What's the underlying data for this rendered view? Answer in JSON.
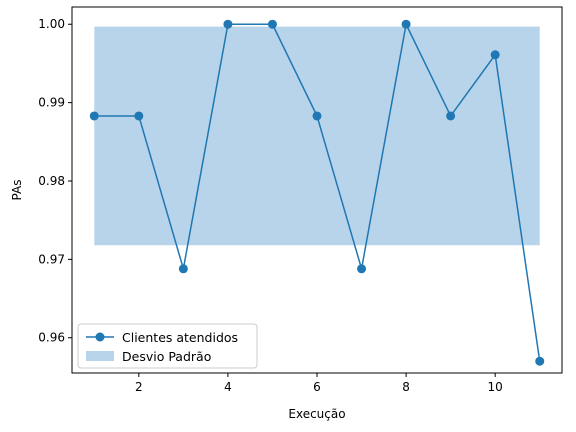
{
  "chart_data": {
    "type": "line",
    "xlabel": "Execução",
    "ylabel": "PAs",
    "xlim": [
      0.5,
      11.5
    ],
    "ylim": [
      0.9555,
      1.0022
    ],
    "x_ticks": [
      2,
      4,
      6,
      8,
      10
    ],
    "y_ticks": [
      0.96,
      0.97,
      0.98,
      0.99,
      1.0
    ],
    "y_tick_labels": [
      "0.96",
      "0.97",
      "0.98",
      "0.99",
      "1.00"
    ],
    "series": [
      {
        "name": "Clientes atendidos",
        "color": "#1f77b4",
        "x": [
          1,
          2,
          3,
          4,
          5,
          6,
          7,
          8,
          9,
          10,
          11
        ],
        "y": [
          0.9883,
          0.9883,
          0.9688,
          1.0,
          1.0,
          0.9883,
          0.9688,
          1.0,
          0.9883,
          0.9961,
          0.957
        ]
      }
    ],
    "band": {
      "name": "Desvio Padrão",
      "color": "#b8d4ea",
      "x_range": [
        1,
        11
      ],
      "y_range": [
        0.9718,
        0.9997
      ]
    },
    "legend": {
      "position": "lower-left",
      "entries": [
        "Clientes atendidos",
        "Desvio Padrão"
      ]
    },
    "grid": false
  }
}
